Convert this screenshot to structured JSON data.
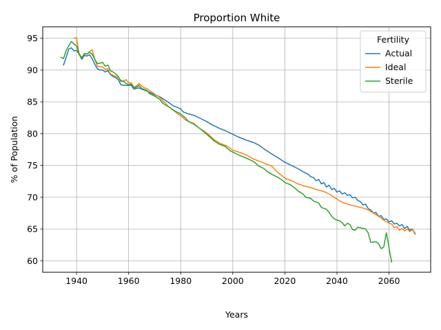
{
  "chart_data": {
    "type": "line",
    "title": "Proportion White",
    "xlabel": "Years",
    "ylabel": "% of Population",
    "xlim": [
      1927,
      2076
    ],
    "ylim": [
      58.2,
      96.8
    ],
    "xticks": [
      1940,
      1960,
      1980,
      2000,
      2020,
      2040,
      2060
    ],
    "yticks": [
      60,
      65,
      70,
      75,
      80,
      85,
      90,
      95
    ],
    "grid": true,
    "legend": {
      "title": "Fertility",
      "placement": "top-right"
    },
    "series": [
      {
        "name": "Actual",
        "color": "#1f77b4",
        "points": [
          [
            1935,
            90.8
          ],
          [
            1936,
            92.0
          ],
          [
            1937,
            93.3
          ],
          [
            1938,
            93.5
          ],
          [
            1939,
            93.0
          ],
          [
            1940,
            93.1
          ],
          [
            1941,
            92.5
          ],
          [
            1942,
            91.7
          ],
          [
            1943,
            92.3
          ],
          [
            1944,
            92.2
          ],
          [
            1945,
            92.4
          ],
          [
            1946,
            91.8
          ],
          [
            1947,
            90.9
          ],
          [
            1948,
            90.2
          ],
          [
            1949,
            90.0
          ],
          [
            1950,
            90.0
          ],
          [
            1951,
            89.7
          ],
          [
            1952,
            89.9
          ],
          [
            1953,
            89.3
          ],
          [
            1954,
            89.0
          ],
          [
            1955,
            88.8
          ],
          [
            1956,
            88.5
          ],
          [
            1957,
            87.7
          ],
          [
            1958,
            87.6
          ],
          [
            1960,
            87.6
          ],
          [
            1961,
            87.6
          ],
          [
            1962,
            87.0
          ],
          [
            1964,
            87.2
          ],
          [
            1965,
            87.0
          ],
          [
            1967,
            86.7
          ],
          [
            1970,
            86.1
          ],
          [
            1972,
            85.8
          ],
          [
            1975,
            85.0
          ],
          [
            1977,
            84.4
          ],
          [
            1980,
            83.9
          ],
          [
            1981,
            83.4
          ],
          [
            1983,
            83.1
          ],
          [
            1985,
            82.9
          ],
          [
            1987,
            82.5
          ],
          [
            1990,
            81.9
          ],
          [
            1992,
            81.4
          ],
          [
            1995,
            80.8
          ],
          [
            1997,
            80.5
          ],
          [
            2000,
            79.9
          ],
          [
            2002,
            79.5
          ],
          [
            2005,
            79.0
          ],
          [
            2008,
            78.6
          ],
          [
            2010,
            78.2
          ],
          [
            2012,
            77.6
          ],
          [
            2015,
            76.8
          ],
          [
            2017,
            76.3
          ],
          [
            2020,
            75.5
          ],
          [
            2022,
            75.1
          ],
          [
            2025,
            74.5
          ],
          [
            2027,
            74.0
          ],
          [
            2029,
            73.6
          ],
          [
            2030,
            73.2
          ],
          [
            2031,
            73.1
          ],
          [
            2032,
            72.6
          ],
          [
            2033,
            72.8
          ],
          [
            2034,
            72.1
          ],
          [
            2035,
            72.3
          ],
          [
            2036,
            71.6
          ],
          [
            2037,
            71.9
          ],
          [
            2038,
            71.2
          ],
          [
            2039,
            71.4
          ],
          [
            2040,
            70.8
          ],
          [
            2041,
            71.0
          ],
          [
            2042,
            70.5
          ],
          [
            2043,
            70.7
          ],
          [
            2044,
            70.3
          ],
          [
            2045,
            70.4
          ],
          [
            2046,
            69.9
          ],
          [
            2047,
            70.0
          ],
          [
            2048,
            69.5
          ],
          [
            2049,
            69.3
          ],
          [
            2050,
            68.8
          ],
          [
            2051,
            68.9
          ],
          [
            2052,
            68.2
          ],
          [
            2053,
            68.0
          ],
          [
            2054,
            67.5
          ],
          [
            2055,
            67.6
          ],
          [
            2056,
            67.0
          ],
          [
            2057,
            67.1
          ],
          [
            2058,
            66.5
          ],
          [
            2059,
            66.6
          ],
          [
            2060,
            66.1
          ],
          [
            2061,
            66.3
          ],
          [
            2062,
            65.8
          ],
          [
            2063,
            65.9
          ],
          [
            2064,
            65.5
          ],
          [
            2065,
            65.7
          ],
          [
            2066,
            65.1
          ],
          [
            2067,
            65.4
          ],
          [
            2068,
            64.8
          ],
          [
            2069,
            65.0
          ],
          [
            2070,
            64.2
          ]
        ]
      },
      {
        "name": "Ideal",
        "color": "#ff7f0e",
        "points": [
          [
            1939,
            95.0
          ],
          [
            1940,
            95.1
          ],
          [
            1941,
            92.3
          ],
          [
            1942,
            92.0
          ],
          [
            1943,
            92.5
          ],
          [
            1944,
            92.5
          ],
          [
            1945,
            92.9
          ],
          [
            1946,
            93.2
          ],
          [
            1947,
            91.7
          ],
          [
            1948,
            90.6
          ],
          [
            1949,
            90.5
          ],
          [
            1950,
            90.5
          ],
          [
            1951,
            90.1
          ],
          [
            1952,
            90.2
          ],
          [
            1953,
            89.4
          ],
          [
            1954,
            89.2
          ],
          [
            1955,
            89.0
          ],
          [
            1956,
            88.8
          ],
          [
            1957,
            88.4
          ],
          [
            1958,
            88.2
          ],
          [
            1959,
            88.5
          ],
          [
            1960,
            88.0
          ],
          [
            1961,
            88.0
          ],
          [
            1962,
            87.3
          ],
          [
            1963,
            87.5
          ],
          [
            1964,
            87.9
          ],
          [
            1965,
            87.5
          ],
          [
            1966,
            87.2
          ],
          [
            1967,
            87.1
          ],
          [
            1968,
            86.8
          ],
          [
            1970,
            86.2
          ],
          [
            1972,
            85.7
          ],
          [
            1974,
            84.8
          ],
          [
            1976,
            84.0
          ],
          [
            1978,
            83.4
          ],
          [
            1980,
            82.8
          ],
          [
            1982,
            82.1
          ],
          [
            1985,
            81.6
          ],
          [
            1987,
            80.9
          ],
          [
            1990,
            80.1
          ],
          [
            1993,
            79.0
          ],
          [
            1995,
            78.5
          ],
          [
            1998,
            78.0
          ],
          [
            2000,
            77.4
          ],
          [
            2003,
            77.0
          ],
          [
            2005,
            76.7
          ],
          [
            2008,
            76.0
          ],
          [
            2010,
            75.7
          ],
          [
            2013,
            75.2
          ],
          [
            2015,
            74.9
          ],
          [
            2017,
            74.0
          ],
          [
            2020,
            73.0
          ],
          [
            2023,
            72.5
          ],
          [
            2025,
            72.1
          ],
          [
            2028,
            71.7
          ],
          [
            2030,
            71.5
          ],
          [
            2033,
            71.1
          ],
          [
            2035,
            70.9
          ],
          [
            2037,
            70.5
          ],
          [
            2039,
            70.0
          ],
          [
            2040,
            69.7
          ],
          [
            2042,
            69.2
          ],
          [
            2045,
            68.8
          ],
          [
            2047,
            68.6
          ],
          [
            2050,
            68.3
          ],
          [
            2052,
            68.0
          ],
          [
            2054,
            67.5
          ],
          [
            2056,
            67.0
          ],
          [
            2058,
            66.4
          ],
          [
            2060,
            65.9
          ],
          [
            2061,
            65.8
          ],
          [
            2062,
            65.2
          ],
          [
            2063,
            65.4
          ],
          [
            2064,
            64.8
          ],
          [
            2065,
            65.1
          ],
          [
            2066,
            64.7
          ],
          [
            2067,
            65.0
          ],
          [
            2068,
            64.6
          ],
          [
            2069,
            64.9
          ],
          [
            2070,
            64.4
          ]
        ]
      },
      {
        "name": "Sterile",
        "color": "#2ca02c",
        "points": [
          [
            1934,
            92.0
          ],
          [
            1935,
            91.8
          ],
          [
            1936,
            93.1
          ],
          [
            1937,
            93.8
          ],
          [
            1938,
            94.5
          ],
          [
            1939,
            94.1
          ],
          [
            1940,
            93.8
          ],
          [
            1941,
            92.6
          ],
          [
            1942,
            91.9
          ],
          [
            1943,
            92.6
          ],
          [
            1944,
            92.5
          ],
          [
            1945,
            92.8
          ],
          [
            1946,
            92.5
          ],
          [
            1947,
            91.7
          ],
          [
            1948,
            91.0
          ],
          [
            1949,
            91.1
          ],
          [
            1950,
            91.2
          ],
          [
            1951,
            90.6
          ],
          [
            1952,
            90.8
          ],
          [
            1953,
            89.9
          ],
          [
            1954,
            89.7
          ],
          [
            1955,
            89.4
          ],
          [
            1956,
            89.0
          ],
          [
            1957,
            88.2
          ],
          [
            1958,
            88.3
          ],
          [
            1959,
            87.9
          ],
          [
            1960,
            87.7
          ],
          [
            1961,
            87.8
          ],
          [
            1962,
            87.2
          ],
          [
            1963,
            87.3
          ],
          [
            1964,
            87.6
          ],
          [
            1965,
            87.1
          ],
          [
            1967,
            86.8
          ],
          [
            1968,
            86.3
          ],
          [
            1970,
            85.9
          ],
          [
            1972,
            85.4
          ],
          [
            1973,
            84.8
          ],
          [
            1975,
            84.3
          ],
          [
            1978,
            83.5
          ],
          [
            1980,
            83.1
          ],
          [
            1982,
            82.4
          ],
          [
            1983,
            81.9
          ],
          [
            1985,
            81.5
          ],
          [
            1988,
            80.6
          ],
          [
            1990,
            79.9
          ],
          [
            1993,
            78.8
          ],
          [
            1995,
            78.3
          ],
          [
            1997,
            78.0
          ],
          [
            1999,
            77.3
          ],
          [
            2002,
            76.7
          ],
          [
            2005,
            76.2
          ],
          [
            2008,
            75.6
          ],
          [
            2010,
            74.9
          ],
          [
            2012,
            74.5
          ],
          [
            2013,
            74.1
          ],
          [
            2015,
            73.6
          ],
          [
            2017,
            73.2
          ],
          [
            2019,
            72.7
          ],
          [
            2020,
            72.3
          ],
          [
            2022,
            72.0
          ],
          [
            2024,
            71.4
          ],
          [
            2025,
            71.0
          ],
          [
            2027,
            70.5
          ],
          [
            2028,
            70.0
          ],
          [
            2030,
            69.8
          ],
          [
            2031,
            69.4
          ],
          [
            2033,
            69.1
          ],
          [
            2034,
            68.4
          ],
          [
            2036,
            68.1
          ],
          [
            2037,
            67.6
          ],
          [
            2038,
            67.0
          ],
          [
            2039,
            66.6
          ],
          [
            2040,
            66.4
          ],
          [
            2041,
            66.3
          ],
          [
            2042,
            66.0
          ],
          [
            2043,
            65.5
          ],
          [
            2044,
            65.9
          ],
          [
            2045,
            65.7
          ],
          [
            2046,
            64.9
          ],
          [
            2047,
            64.8
          ],
          [
            2048,
            65.3
          ],
          [
            2049,
            65.2
          ],
          [
            2050,
            65.1
          ],
          [
            2051,
            65.0
          ],
          [
            2052,
            64.4
          ],
          [
            2053,
            62.9
          ],
          [
            2055,
            63.0
          ],
          [
            2056,
            62.7
          ],
          [
            2057,
            61.9
          ],
          [
            2058,
            62.2
          ],
          [
            2059,
            64.4
          ],
          [
            2060,
            62.1
          ],
          [
            2061,
            59.8
          ]
        ]
      }
    ]
  }
}
